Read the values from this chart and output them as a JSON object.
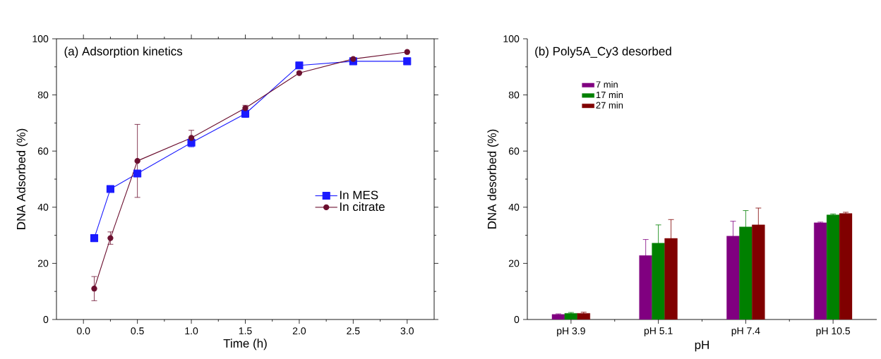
{
  "chart_data": [
    {
      "type": "line",
      "title": "(a) Adsorption kinetics",
      "xlabel": "Time (h)",
      "ylabel": "DNA Adsorbed (%)",
      "x": [
        0.1,
        0.25,
        0.5,
        1.0,
        1.5,
        2.0,
        2.5,
        3.0
      ],
      "series": [
        {
          "name": "In MES",
          "color": "#1a1aff",
          "marker": "square",
          "values": [
            29,
            46.5,
            52,
            63,
            73.3,
            90.5,
            92,
            92
          ],
          "errors": [
            null,
            null,
            null,
            1.5,
            1.3,
            null,
            null,
            1
          ]
        },
        {
          "name": "In citrate",
          "color": "#6b0f2f",
          "marker": "circle",
          "values": [
            11,
            29,
            56.5,
            64.7,
            75.3,
            87.8,
            92.8,
            95.3
          ],
          "errors": [
            4.3,
            2.2,
            13,
            2.7,
            1,
            null,
            null,
            null
          ]
        }
      ],
      "xlim": [
        -0.25,
        3.25
      ],
      "ylim": [
        0,
        100
      ],
      "xticks": [
        {
          "value": 0,
          "label": "0.0"
        },
        {
          "value": 0.5,
          "label": "0.5"
        },
        {
          "value": 1,
          "label": "1.0"
        },
        {
          "value": 1.5,
          "label": "1.5"
        },
        {
          "value": 2,
          "label": "2.0"
        },
        {
          "value": 2.5,
          "label": "2.5"
        },
        {
          "value": 3,
          "label": "3.0"
        }
      ],
      "yticks": [
        0,
        20,
        40,
        60,
        80,
        100
      ],
      "legend": "right"
    },
    {
      "type": "bar",
      "title": "(b) Poly5A_Cy3 desorbed",
      "xlabel": "pH",
      "ylabel": "DNA desorbed (%)",
      "categories": [
        "pH 3.9",
        "pH 5.1",
        "pH 7.4",
        "pH 10.5"
      ],
      "series": [
        {
          "name": "7 min",
          "color": "#800080",
          "values": [
            1.8,
            22.8,
            29.7,
            34.5
          ],
          "errors": [
            0.2,
            5.7,
            5.3,
            0.2
          ]
        },
        {
          "name": "17 min",
          "color": "#008000",
          "values": [
            2.2,
            27.2,
            33,
            37.3
          ],
          "errors": [
            0.3,
            6.5,
            5.8,
            0.3
          ]
        },
        {
          "name": "27 min",
          "color": "#800000",
          "values": [
            2.2,
            28.9,
            33.7,
            37.8
          ],
          "errors": [
            0.4,
            6.7,
            6,
            0.4
          ]
        }
      ],
      "ylim": [
        0,
        100
      ],
      "yticks": [
        0,
        20,
        40,
        60,
        80,
        100
      ],
      "legend": "top left"
    }
  ]
}
